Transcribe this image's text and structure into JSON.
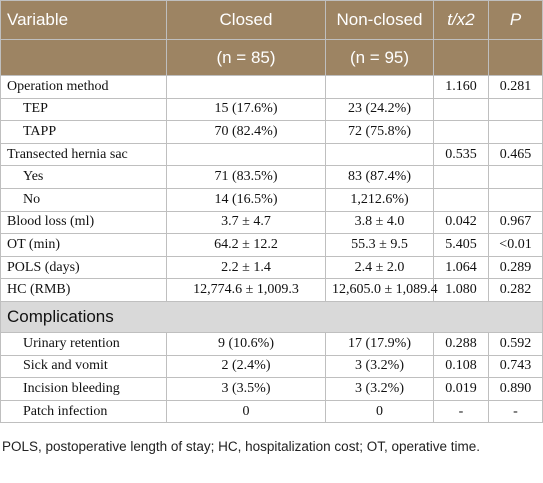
{
  "table": {
    "header": [
      "Variable",
      "Closed",
      "Non-closed",
      "t/x2",
      "P"
    ],
    "subheader": [
      null,
      "(n = 85)",
      "(n = 95)",
      null,
      null
    ],
    "groups": [
      {
        "row": [
          "Operation method",
          null,
          null,
          "1.160",
          "0.281"
        ],
        "items": [
          [
            "TEP",
            "15 (17.6%)",
            "23 (24.2%)",
            null,
            null
          ],
          [
            "TAPP",
            "70 (82.4%)",
            "72 (75.8%)",
            null,
            null
          ]
        ]
      },
      {
        "row": [
          "Transected hernia sac",
          null,
          null,
          "0.535",
          "0.465"
        ],
        "items": [
          [
            "Yes",
            "71 (83.5%)",
            "83 (87.4%)",
            null,
            null
          ],
          [
            "No",
            "14 (16.5%)",
            "1,212.6%)",
            null,
            null
          ]
        ]
      },
      {
        "row": [
          "Blood loss (ml)",
          "3.7 ± 4.7",
          "3.8 ± 4.0",
          "0.042",
          "0.967"
        ]
      },
      {
        "row": [
          "OT (min)",
          "64.2 ± 12.2",
          "55.3 ± 9.5",
          "5.405",
          "<0.01"
        ]
      },
      {
        "row": [
          "POLS (days)",
          "2.2 ± 1.4",
          "2.4 ± 2.0",
          "1.064",
          "0.289"
        ]
      },
      {
        "row": [
          "HC (RMB)",
          "12,774.6 ± 1,009.3",
          "12,605.0 ± 1,089.4",
          "1.080",
          "0.282"
        ]
      }
    ],
    "section_title": "Complications",
    "section_rows": [
      [
        "Urinary retention",
        "9 (10.6%)",
        "17 (17.9%)",
        "0.288",
        "0.592"
      ],
      [
        "Sick and vomit",
        "2 (2.4%)",
        "3 (3.2%)",
        "0.108",
        "0.743"
      ],
      [
        "Incision bleeding",
        "3 (3.5%)",
        "3 (3.2%)",
        "0.019",
        "0.890"
      ],
      [
        "Patch infection",
        "0",
        "0",
        "-",
        "-"
      ]
    ],
    "footnote": "POLS, postoperative length of stay; HC, hospitalization cost; OT, operative time."
  }
}
